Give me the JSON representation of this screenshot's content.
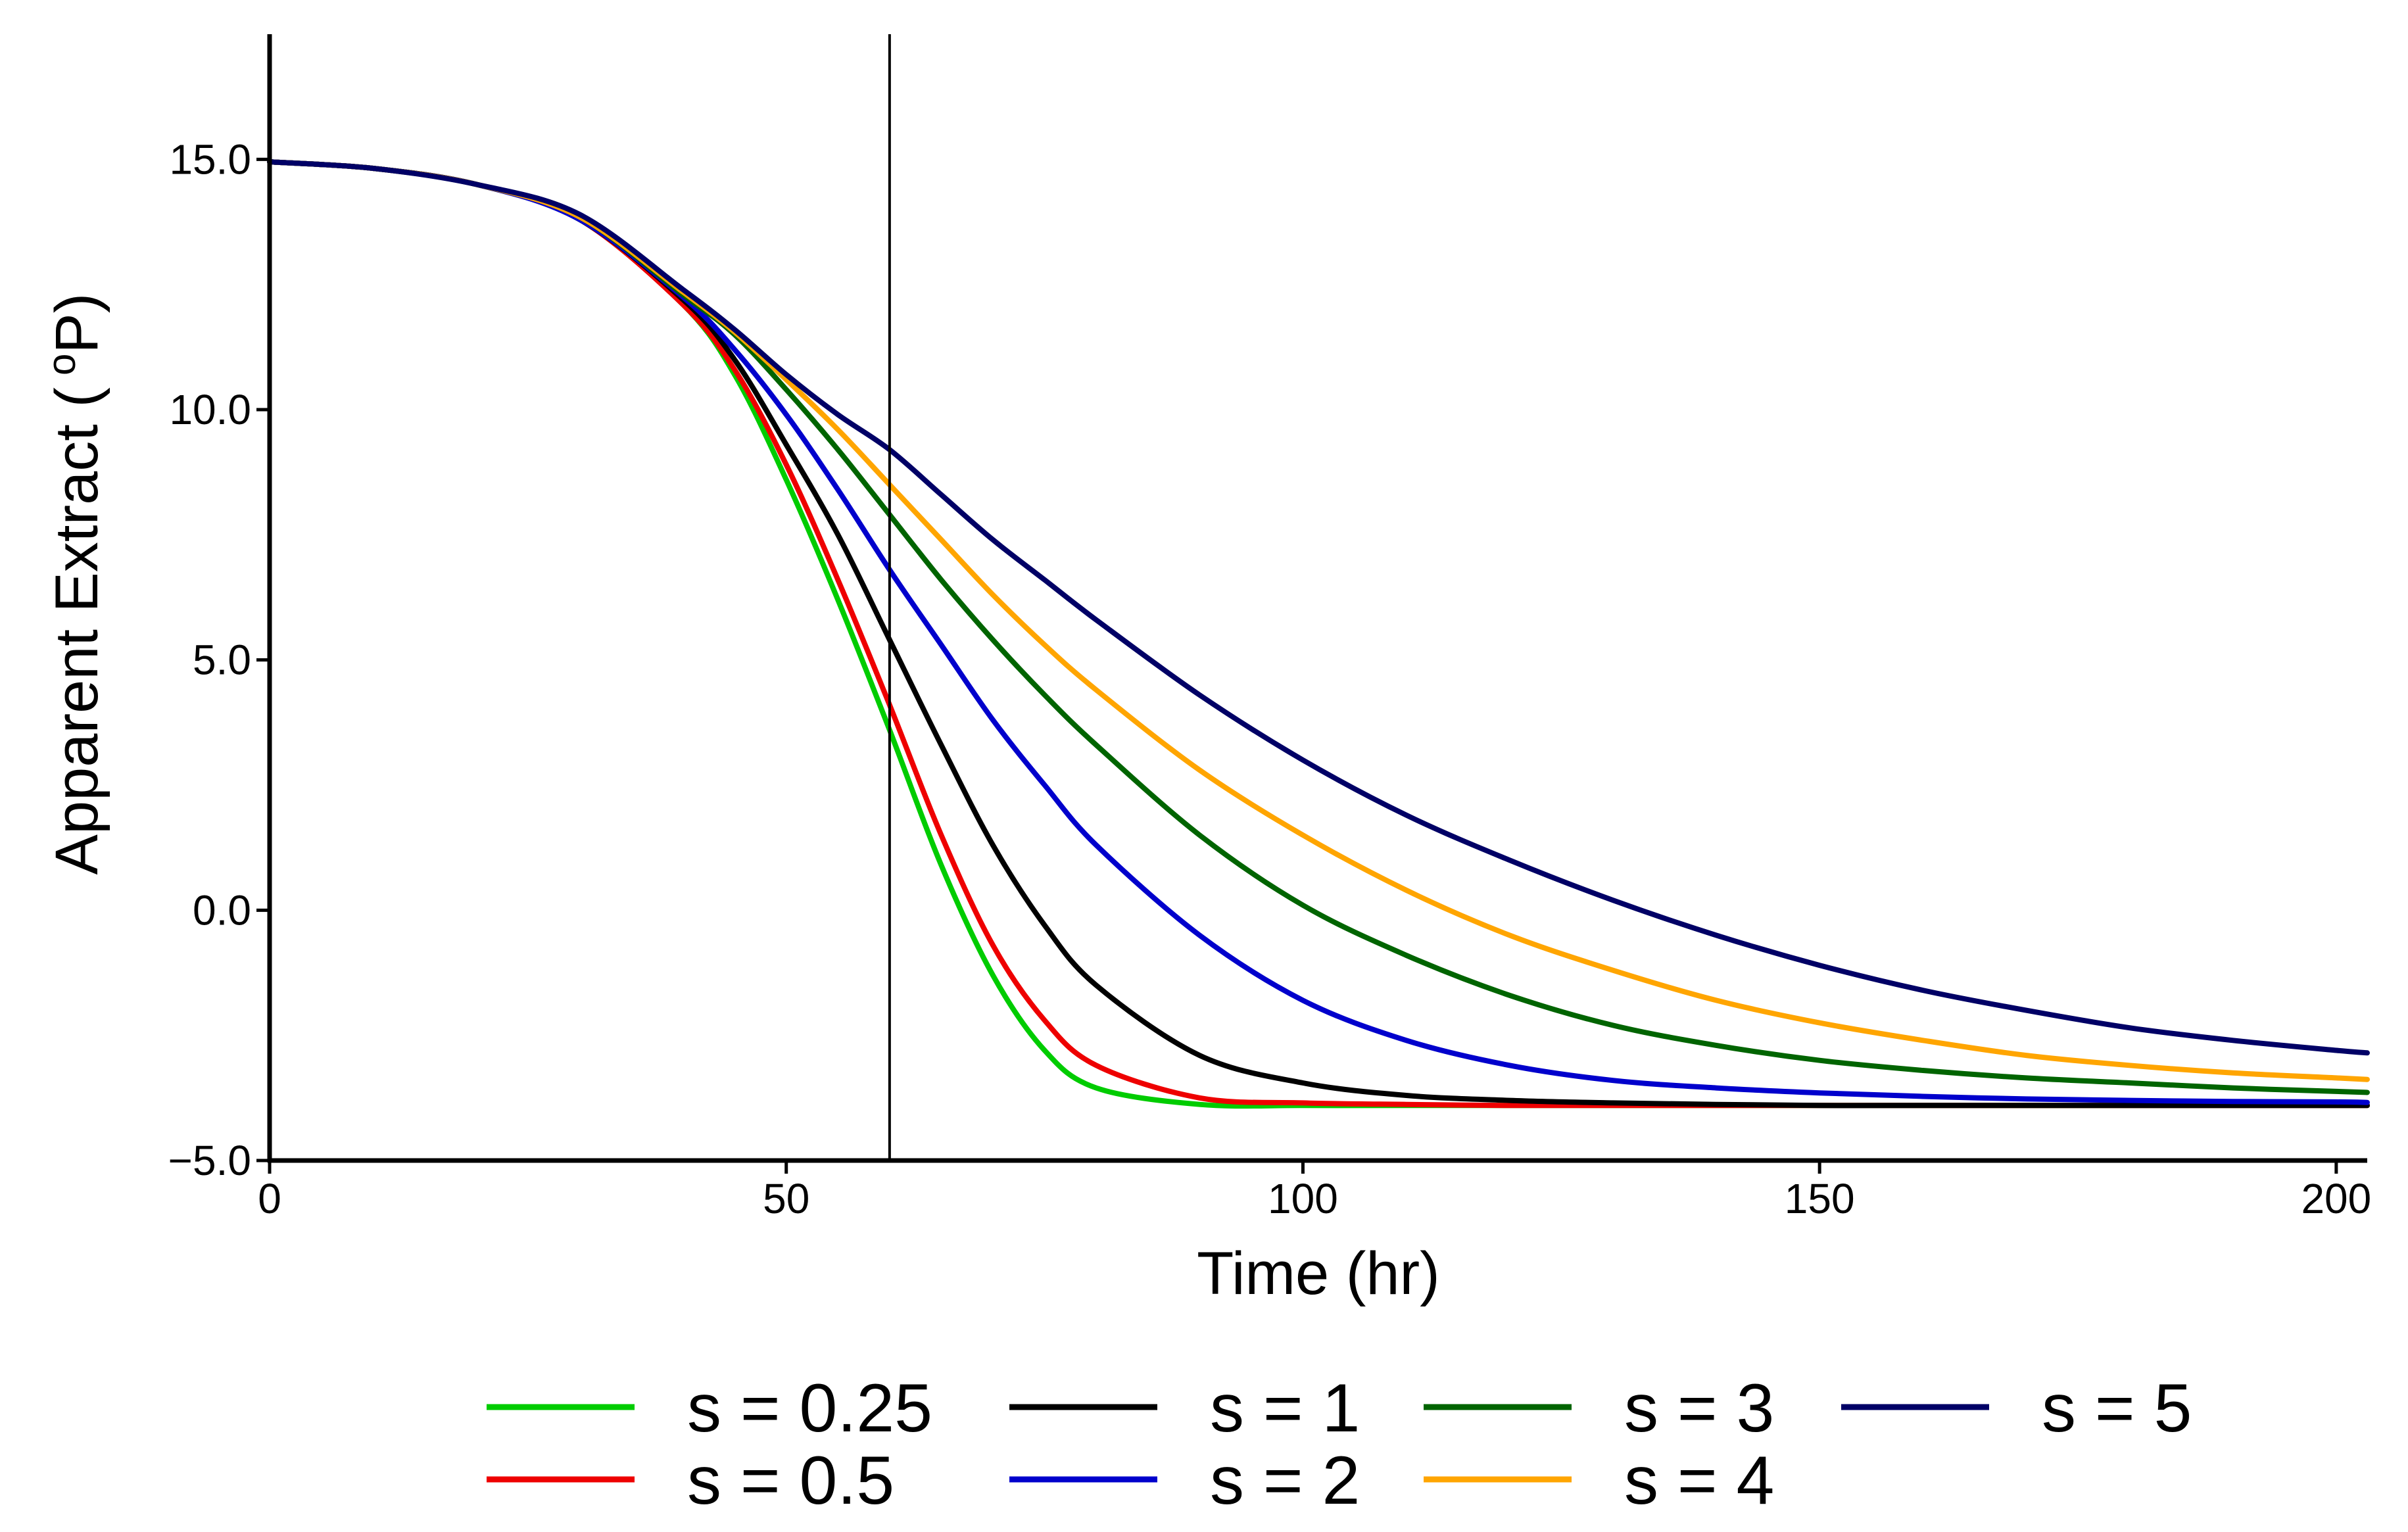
{
  "chart_data": {
    "type": "line",
    "title": "",
    "xlabel": "Time (hr)",
    "ylabel_main": "Apparent Extract (",
    "ylabel_super": "o",
    "ylabel_unit": "P)",
    "xlim": [
      0,
      203
    ],
    "ylim": [
      -5,
      17.5
    ],
    "xticks": [
      0,
      50,
      100,
      150,
      200
    ],
    "xtick_labels": [
      "0",
      "50",
      "100",
      "150",
      "200"
    ],
    "yticks": [
      -5,
      0,
      5,
      10,
      15
    ],
    "ytick_labels": [
      "−5.0",
      "0.0",
      "5.0",
      "10.0",
      "15.0"
    ],
    "grid": false,
    "vline_x": 60,
    "legend_position": "bottom",
    "x": [
      0,
      10,
      20,
      30,
      40,
      45,
      50,
      55,
      60,
      65,
      70,
      75,
      80,
      90,
      100,
      110,
      120,
      130,
      140,
      150,
      160,
      170,
      180,
      190,
      200,
      203
    ],
    "series": [
      {
        "name": "s = 0.25",
        "color": "#00CC00",
        "values": [
          14.95,
          14.82,
          14.5,
          13.8,
          12.1,
          10.7,
          8.6,
          6.2,
          3.6,
          0.9,
          -1.3,
          -2.8,
          -3.55,
          -3.88,
          -3.9,
          -3.9,
          -3.9,
          -3.9,
          -3.9,
          -3.9,
          -3.9,
          -3.9,
          -3.9,
          -3.9,
          -3.9,
          -3.9
        ]
      },
      {
        "name": "s = 0.5",
        "color": "#EE0000",
        "values": [
          14.95,
          14.82,
          14.5,
          13.8,
          12.1,
          10.8,
          8.9,
          6.6,
          4.1,
          1.5,
          -0.7,
          -2.2,
          -3.1,
          -3.75,
          -3.85,
          -3.88,
          -3.9,
          -3.9,
          -3.9,
          -3.9,
          -3.9,
          -3.9,
          -3.9,
          -3.9,
          -3.9,
          -3.9
        ]
      },
      {
        "name": "s = 1",
        "color": "#000000",
        "values": [
          14.95,
          14.82,
          14.5,
          13.8,
          12.2,
          11.0,
          9.3,
          7.5,
          5.4,
          3.3,
          1.3,
          -0.3,
          -1.5,
          -2.9,
          -3.45,
          -3.7,
          -3.8,
          -3.85,
          -3.88,
          -3.9,
          -3.9,
          -3.9,
          -3.9,
          -3.9,
          -3.9,
          -3.9
        ]
      },
      {
        "name": "s = 2",
        "color": "#0000CC",
        "values": [
          14.95,
          14.82,
          14.5,
          13.8,
          12.25,
          11.2,
          9.9,
          8.4,
          6.8,
          5.3,
          3.8,
          2.5,
          1.3,
          -0.5,
          -1.8,
          -2.6,
          -3.1,
          -3.4,
          -3.55,
          -3.65,
          -3.72,
          -3.77,
          -3.8,
          -3.82,
          -3.83,
          -3.84
        ]
      },
      {
        "name": "s = 3",
        "color": "#006400",
        "values": [
          14.95,
          14.82,
          14.5,
          13.85,
          12.3,
          11.5,
          10.4,
          9.2,
          7.9,
          6.6,
          5.4,
          4.3,
          3.3,
          1.5,
          0.1,
          -0.9,
          -1.7,
          -2.3,
          -2.7,
          -3.0,
          -3.2,
          -3.35,
          -3.45,
          -3.55,
          -3.62,
          -3.64
        ]
      },
      {
        "name": "s = 4",
        "color": "#FFA500",
        "values": [
          14.95,
          14.82,
          14.5,
          13.85,
          12.35,
          11.55,
          10.6,
          9.6,
          8.5,
          7.4,
          6.3,
          5.3,
          4.4,
          2.8,
          1.5,
          0.4,
          -0.5,
          -1.2,
          -1.8,
          -2.25,
          -2.6,
          -2.9,
          -3.1,
          -3.25,
          -3.35,
          -3.38
        ]
      },
      {
        "name": "s = 5",
        "color": "#000066",
        "values": [
          14.95,
          14.82,
          14.5,
          13.9,
          12.4,
          11.6,
          10.7,
          9.9,
          9.2,
          8.3,
          7.4,
          6.6,
          5.8,
          4.3,
          3.0,
          1.9,
          1.0,
          0.2,
          -0.5,
          -1.1,
          -1.6,
          -2.0,
          -2.35,
          -2.6,
          -2.8,
          -2.85
        ]
      }
    ]
  }
}
